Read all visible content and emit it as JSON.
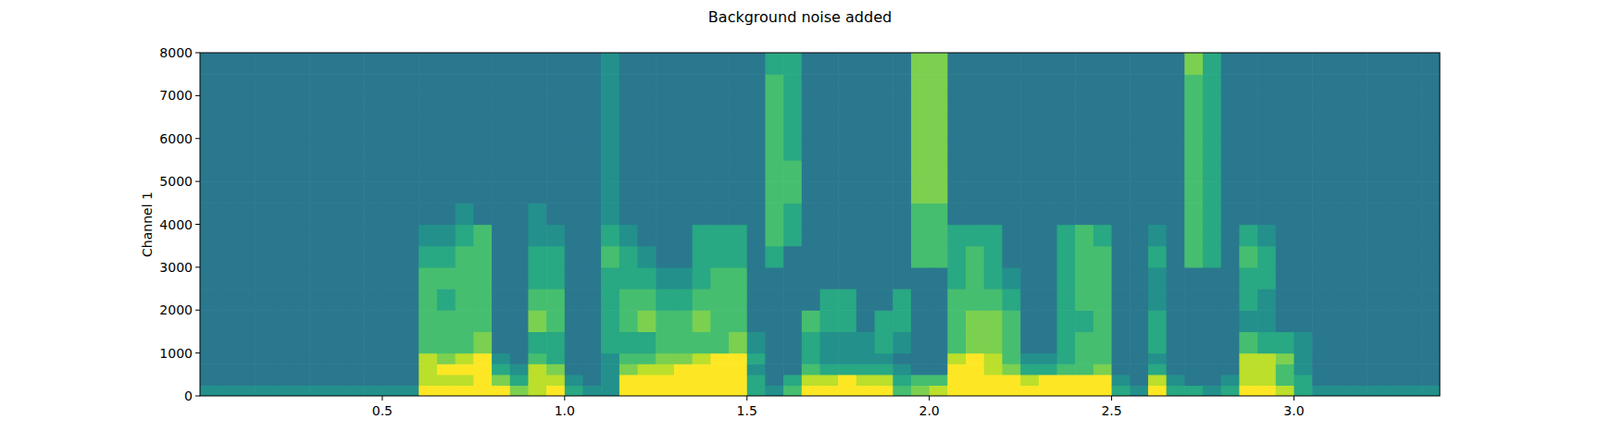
{
  "chart_data": {
    "type": "heatmap",
    "title": "Background noise added",
    "y_label": "Channel 1",
    "xlim": [
      0,
      3.4
    ],
    "ylim": [
      0,
      8000
    ],
    "xticks": [
      0.5,
      {
        "value": 1,
        "label": "1.0"
      },
      1.5,
      {
        "value": 2,
        "label": "2.0"
      },
      2.5,
      {
        "value": 3,
        "label": "3.0"
      }
    ],
    "yticks": [
      0,
      1000,
      2000,
      3000,
      4000,
      5000,
      6000,
      7000,
      8000
    ],
    "color_range": [
      -1,
      9
    ],
    "x_bins": [
      0,
      0.05,
      0.1,
      0.15,
      0.2,
      0.25,
      0.3,
      0.35,
      0.4,
      0.45,
      0.5,
      0.55,
      0.6,
      0.65,
      0.7,
      0.75,
      0.8,
      0.85,
      0.9,
      0.95,
      1,
      1.05,
      1.1,
      1.15,
      1.2,
      1.25,
      1.3,
      1.35,
      1.4,
      1.45,
      1.5,
      1.55,
      1.6,
      1.65,
      1.7,
      1.75,
      1.8,
      1.85,
      1.9,
      1.95,
      2,
      2.05,
      2.1,
      2.15,
      2.2,
      2.25,
      2.3,
      2.35,
      2.4,
      2.45,
      2.5,
      2.55,
      2.6,
      2.65,
      2.7,
      2.75,
      2.8,
      2.85,
      2.9,
      2.95,
      3,
      3.05,
      3.1,
      3.15,
      3.2,
      3.25,
      3.3,
      3.35,
      3.4
    ],
    "y_bins": [
      0,
      250,
      500,
      750,
      1000,
      1500,
      2000,
      2500,
      3000,
      3500,
      4000,
      4500,
      5000,
      5500,
      6000,
      6500,
      7000,
      7500,
      8000
    ],
    "cells": [
      [
        4,
        3,
        3,
        3,
        3,
        3,
        3,
        3,
        3,
        3,
        3,
        3,
        3,
        3,
        3,
        3,
        3,
        3
      ],
      [
        4,
        3,
        3,
        3,
        3,
        3,
        3,
        3,
        3,
        3,
        3,
        3,
        3,
        3,
        3,
        3,
        3,
        3
      ],
      [
        4,
        3,
        3,
        3,
        3,
        3,
        3,
        3,
        3,
        3,
        3,
        3,
        3,
        3,
        3,
        3,
        3,
        3
      ],
      [
        4,
        3,
        3,
        3,
        3,
        3,
        3,
        3,
        3,
        3,
        3,
        3,
        3,
        3,
        3,
        3,
        3,
        3
      ],
      [
        4,
        3,
        3,
        3,
        3,
        3,
        3,
        3,
        3,
        3,
        3,
        3,
        3,
        3,
        3,
        3,
        3,
        3
      ],
      [
        4,
        3,
        3,
        3,
        3,
        3,
        3,
        3,
        3,
        3,
        3,
        3,
        3,
        3,
        3,
        3,
        3,
        3
      ],
      [
        4,
        3,
        3,
        3,
        3,
        3,
        3,
        3,
        3,
        3,
        3,
        3,
        3,
        3,
        3,
        3,
        3,
        3
      ],
      [
        4,
        3,
        3,
        3,
        3,
        3,
        3,
        3,
        3,
        3,
        3,
        3,
        3,
        3,
        3,
        3,
        3,
        3
      ],
      [
        4,
        3,
        3,
        3,
        3,
        3,
        3,
        3,
        3,
        3,
        3,
        3,
        3,
        3,
        3,
        3,
        3,
        3
      ],
      [
        4,
        3,
        3,
        3,
        3,
        3,
        3,
        3,
        3,
        3,
        3,
        3,
        3,
        3,
        3,
        3,
        3,
        3
      ],
      [
        4,
        3,
        3,
        3,
        3,
        3,
        3,
        3,
        3,
        3,
        3,
        3,
        3,
        3,
        3,
        3,
        3,
        3
      ],
      [
        4,
        3,
        3,
        3,
        3,
        3,
        3,
        3,
        3,
        3,
        3,
        3,
        3,
        3,
        3,
        3,
        3,
        3
      ],
      [
        9,
        8,
        8,
        8,
        6,
        6,
        6,
        6,
        5,
        4,
        3,
        3,
        3,
        3,
        3,
        3,
        3,
        3
      ],
      [
        9,
        8,
        9,
        7,
        6,
        6,
        5,
        6,
        5,
        4,
        3,
        3,
        3,
        3,
        3,
        3,
        3,
        3
      ],
      [
        9,
        8,
        9,
        8,
        6,
        6,
        6,
        6,
        6,
        5,
        4,
        3,
        3,
        3,
        3,
        3,
        3,
        3
      ],
      [
        9,
        9,
        9,
        9,
        7,
        6,
        6,
        6,
        6,
        6,
        3,
        3,
        3,
        3,
        3,
        3,
        3,
        3
      ],
      [
        9,
        7,
        5,
        4,
        3,
        3,
        3,
        3,
        3,
        3,
        3,
        3,
        3,
        3,
        3,
        3,
        3,
        3
      ],
      [
        7,
        5,
        4,
        3,
        3,
        3,
        3,
        3,
        3,
        3,
        3,
        3,
        3,
        3,
        3,
        3,
        3,
        3
      ],
      [
        8,
        8,
        8,
        6,
        5,
        7,
        6,
        5,
        5,
        4,
        4,
        3,
        3,
        3,
        3,
        3,
        3,
        3
      ],
      [
        9,
        8,
        7,
        5,
        5,
        6,
        6,
        5,
        5,
        4,
        3,
        3,
        3,
        3,
        3,
        3,
        3,
        3
      ],
      [
        5,
        4,
        3,
        3,
        3,
        3,
        3,
        3,
        3,
        3,
        3,
        3,
        3,
        3,
        3,
        3,
        3,
        3
      ],
      [
        4,
        3,
        3,
        3,
        3,
        3,
        3,
        3,
        3,
        3,
        3,
        3,
        3,
        3,
        3,
        3,
        3,
        3
      ],
      [
        4,
        4,
        4,
        4,
        5,
        5,
        5,
        5,
        6,
        5,
        4,
        4,
        4,
        4,
        4,
        4,
        4,
        4
      ],
      [
        9,
        9,
        7,
        6,
        5,
        6,
        6,
        5,
        5,
        4,
        3,
        3,
        3,
        3,
        3,
        3,
        3,
        3
      ],
      [
        9,
        9,
        8,
        6,
        5,
        7,
        6,
        5,
        4,
        3,
        3,
        3,
        3,
        3,
        3,
        3,
        3,
        3
      ],
      [
        9,
        9,
        8,
        7,
        6,
        6,
        5,
        4,
        3,
        3,
        3,
        3,
        3,
        3,
        3,
        3,
        3,
        3
      ],
      [
        9,
        9,
        9,
        7,
        6,
        6,
        5,
        4,
        3,
        3,
        3,
        3,
        3,
        3,
        3,
        3,
        3,
        3
      ],
      [
        9,
        9,
        9,
        8,
        6,
        7,
        6,
        5,
        5,
        5,
        3,
        3,
        3,
        3,
        3,
        3,
        3,
        3
      ],
      [
        9,
        9,
        9,
        9,
        6,
        6,
        6,
        6,
        5,
        5,
        3,
        3,
        3,
        3,
        3,
        3,
        3,
        3
      ],
      [
        9,
        9,
        9,
        9,
        7,
        6,
        6,
        6,
        5,
        5,
        3,
        3,
        3,
        3,
        3,
        3,
        3,
        3
      ],
      [
        5,
        5,
        4,
        5,
        4,
        3,
        3,
        3,
        3,
        3,
        3,
        3,
        3,
        3,
        3,
        3,
        3,
        3
      ],
      [
        4,
        3,
        3,
        3,
        3,
        3,
        3,
        3,
        5,
        6,
        6,
        6,
        6,
        6,
        6,
        6,
        6,
        5
      ],
      [
        6,
        5,
        3,
        3,
        3,
        3,
        3,
        3,
        3,
        5,
        5,
        6,
        6,
        5,
        5,
        5,
        5,
        5
      ],
      [
        9,
        8,
        6,
        5,
        5,
        6,
        3,
        3,
        3,
        3,
        3,
        3,
        3,
        3,
        3,
        3,
        3,
        3
      ],
      [
        9,
        8,
        5,
        4,
        4,
        5,
        5,
        3,
        3,
        3,
        3,
        3,
        3,
        3,
        3,
        3,
        3,
        3
      ],
      [
        9,
        9,
        5,
        4,
        4,
        5,
        5,
        3,
        3,
        3,
        3,
        3,
        3,
        3,
        3,
        3,
        3,
        3
      ],
      [
        9,
        8,
        5,
        4,
        4,
        3,
        3,
        3,
        3,
        3,
        3,
        3,
        3,
        3,
        3,
        3,
        3,
        3
      ],
      [
        9,
        8,
        5,
        4,
        5,
        5,
        3,
        3,
        3,
        3,
        3,
        3,
        3,
        3,
        3,
        3,
        3,
        3
      ],
      [
        6,
        5,
        4,
        3,
        4,
        5,
        5,
        3,
        3,
        3,
        3,
        3,
        3,
        3,
        3,
        3,
        3,
        3
      ],
      [
        7,
        6,
        3,
        3,
        3,
        3,
        3,
        3,
        6,
        6,
        6,
        7,
        7,
        7,
        7,
        7,
        7,
        7
      ],
      [
        8,
        6,
        3,
        3,
        3,
        3,
        3,
        3,
        6,
        6,
        6,
        7,
        7,
        7,
        7,
        7,
        7,
        7
      ],
      [
        9,
        9,
        9,
        8,
        6,
        6,
        6,
        5,
        5,
        5,
        3,
        3,
        3,
        3,
        3,
        3,
        3,
        3
      ],
      [
        9,
        9,
        9,
        9,
        7,
        7,
        6,
        6,
        6,
        5,
        3,
        3,
        3,
        3,
        3,
        3,
        3,
        3
      ],
      [
        9,
        9,
        8,
        8,
        7,
        7,
        6,
        5,
        5,
        5,
        3,
        3,
        3,
        3,
        3,
        3,
        3,
        3
      ],
      [
        9,
        9,
        7,
        6,
        6,
        6,
        5,
        4,
        3,
        3,
        3,
        3,
        3,
        3,
        3,
        3,
        3,
        3
      ],
      [
        9,
        8,
        5,
        4,
        3,
        3,
        3,
        3,
        3,
        3,
        3,
        3,
        3,
        3,
        3,
        3,
        3,
        3
      ],
      [
        9,
        9,
        5,
        4,
        3,
        3,
        3,
        3,
        3,
        3,
        3,
        3,
        3,
        3,
        3,
        3,
        3,
        3
      ],
      [
        9,
        9,
        6,
        5,
        5,
        5,
        5,
        5,
        5,
        5,
        3,
        3,
        3,
        3,
        3,
        3,
        3,
        3
      ],
      [
        9,
        9,
        6,
        6,
        6,
        5,
        6,
        6,
        6,
        6,
        3,
        3,
        3,
        3,
        3,
        3,
        3,
        3
      ],
      [
        9,
        9,
        7,
        6,
        6,
        6,
        6,
        6,
        6,
        5,
        3,
        3,
        3,
        3,
        3,
        3,
        3,
        3
      ],
      [
        5,
        4,
        3,
        3,
        3,
        3,
        3,
        3,
        3,
        3,
        3,
        3,
        3,
        3,
        3,
        3,
        3,
        3
      ],
      [
        4,
        3,
        3,
        3,
        3,
        3,
        3,
        3,
        3,
        3,
        3,
        3,
        3,
        3,
        3,
        3,
        3,
        3
      ],
      [
        9,
        8,
        5,
        4,
        5,
        5,
        4,
        4,
        5,
        4,
        3,
        3,
        3,
        3,
        3,
        3,
        3,
        3
      ],
      [
        5,
        4,
        3,
        3,
        3,
        3,
        3,
        3,
        3,
        3,
        3,
        3,
        3,
        3,
        3,
        3,
        3,
        3
      ],
      [
        5,
        3,
        3,
        3,
        3,
        3,
        3,
        3,
        6,
        6,
        6,
        6,
        6,
        6,
        6,
        6,
        6,
        7
      ],
      [
        4,
        3,
        3,
        3,
        3,
        3,
        3,
        3,
        5,
        5,
        5,
        5,
        5,
        5,
        5,
        5,
        5,
        5
      ],
      [
        5,
        4,
        3,
        3,
        3,
        3,
        3,
        3,
        3,
        3,
        3,
        3,
        3,
        3,
        3,
        3,
        3,
        3
      ],
      [
        9,
        8,
        8,
        8,
        6,
        4,
        5,
        5,
        6,
        5,
        3,
        3,
        3,
        3,
        3,
        3,
        3,
        3
      ],
      [
        9,
        8,
        8,
        8,
        5,
        4,
        4,
        5,
        5,
        4,
        3,
        3,
        3,
        3,
        3,
        3,
        3,
        3
      ],
      [
        8,
        6,
        6,
        7,
        5,
        3,
        3,
        3,
        3,
        3,
        3,
        3,
        3,
        3,
        3,
        3,
        3,
        3
      ],
      [
        5,
        5,
        4,
        4,
        4,
        3,
        3,
        3,
        3,
        3,
        3,
        3,
        3,
        3,
        3,
        3,
        3,
        3
      ],
      [
        4,
        3,
        3,
        3,
        3,
        3,
        3,
        3,
        3,
        3,
        3,
        3,
        3,
        3,
        3,
        3,
        3,
        3
      ],
      [
        4,
        3,
        3,
        3,
        3,
        3,
        3,
        3,
        3,
        3,
        3,
        3,
        3,
        3,
        3,
        3,
        3,
        3
      ],
      [
        4,
        3,
        3,
        3,
        3,
        3,
        3,
        3,
        3,
        3,
        3,
        3,
        3,
        3,
        3,
        3,
        3,
        3
      ],
      [
        4,
        3,
        3,
        3,
        3,
        3,
        3,
        3,
        3,
        3,
        3,
        3,
        3,
        3,
        3,
        3,
        3,
        3
      ],
      [
        4,
        3,
        3,
        3,
        3,
        3,
        3,
        3,
        3,
        3,
        3,
        3,
        3,
        3,
        3,
        3,
        3,
        3
      ],
      [
        4,
        3,
        3,
        3,
        3,
        3,
        3,
        3,
        3,
        3,
        3,
        3,
        3,
        3,
        3,
        3,
        3,
        3
      ],
      [
        4,
        3,
        3,
        3,
        3,
        3,
        3,
        3,
        3,
        3,
        3,
        3,
        3,
        3,
        3,
        3,
        3,
        3
      ]
    ]
  }
}
